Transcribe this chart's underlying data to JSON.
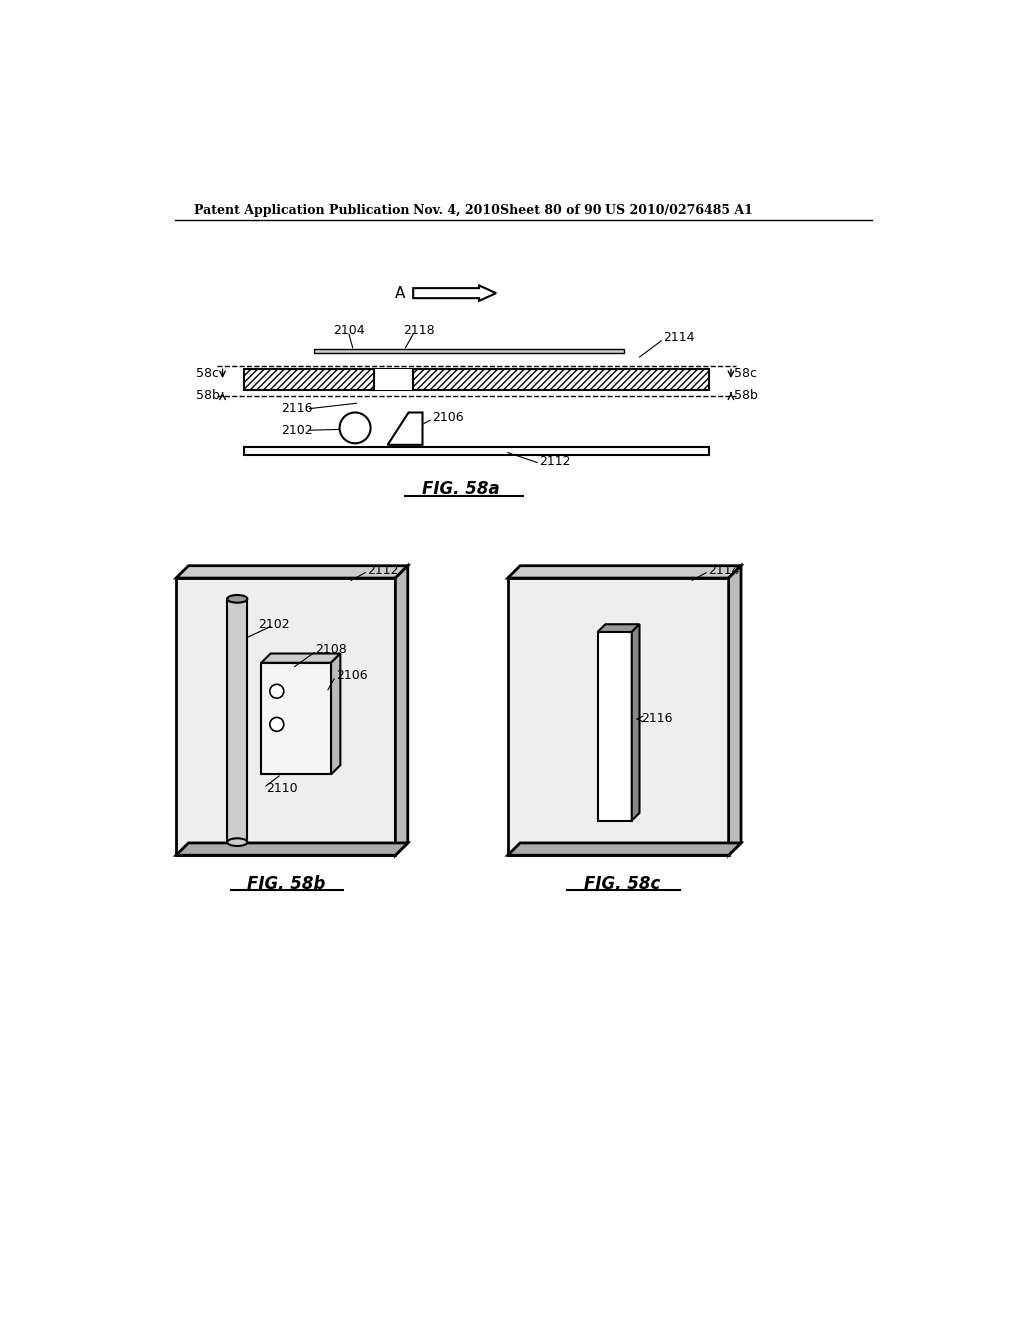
{
  "bg_color": "#ffffff",
  "header_text": "Patent Application Publication",
  "header_date": "Nov. 4, 2010",
  "header_sheet": "Sheet 80 of 90",
  "header_patent": "US 2010/0276485 A1",
  "fig_caption_a": "FIG. 58a",
  "fig_caption_b": "FIG. 58b",
  "fig_caption_c": "FIG. 58c"
}
